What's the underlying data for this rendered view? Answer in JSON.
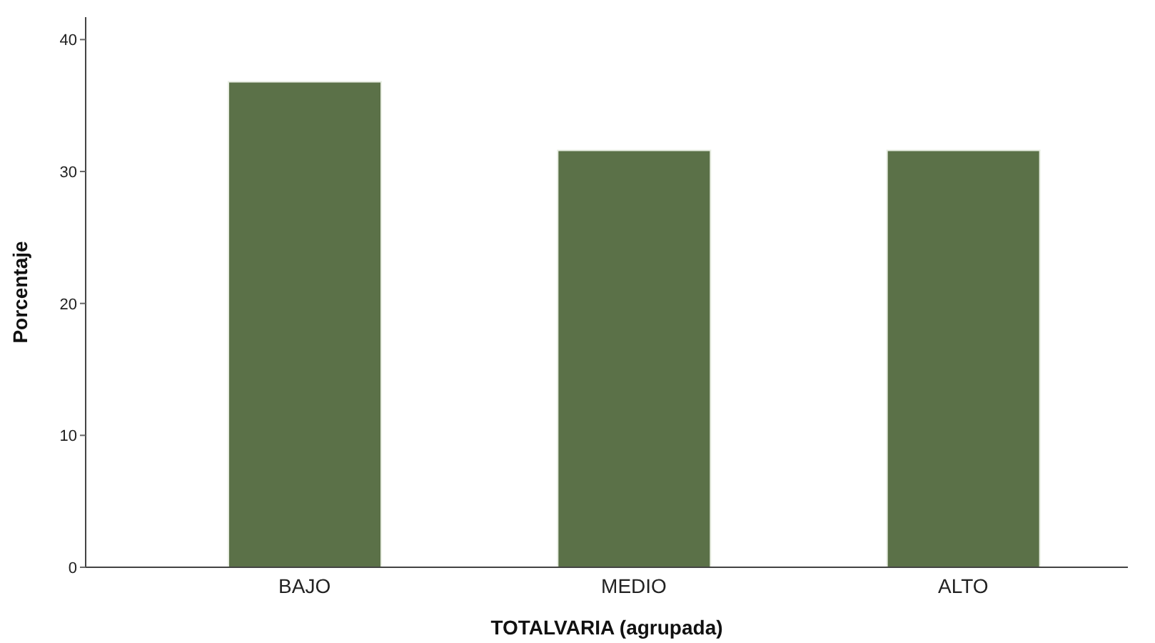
{
  "chart_data": {
    "type": "bar",
    "xlabel": "TOTALVARIA (agrupada)",
    "ylabel": "Porcentaje",
    "categories": [
      "BAJO",
      "MEDIO",
      "ALTO"
    ],
    "values": [
      36.8,
      31.6,
      31.6
    ],
    "color": "#5b7148",
    "ylim": [
      0,
      41.7
    ],
    "yticks": [
      0,
      10,
      20,
      30,
      40
    ],
    "grid": false
  }
}
